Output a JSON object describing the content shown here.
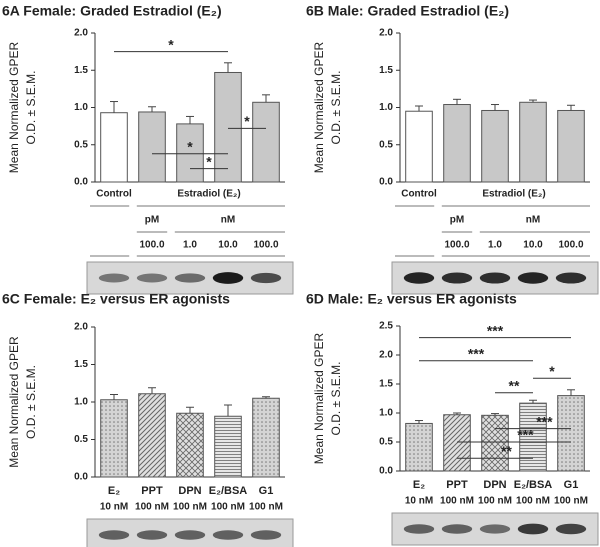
{
  "chart_data": [
    {
      "type": "bar",
      "title": "6A  Female:  Graded Estradiol (E₂)",
      "ylabel": [
        "Mean Normalized GPER",
        "O.D. ± S.E.M."
      ],
      "control_label": "Control",
      "group_label": "Estradiol (E₂)",
      "units": [
        "pM",
        "nM"
      ],
      "categories": [
        null,
        "100.0",
        "1.0",
        "10.0",
        "100.0"
      ],
      "values": [
        0.93,
        0.94,
        0.78,
        1.47,
        1.07
      ],
      "errors": [
        0.15,
        0.07,
        0.1,
        0.13,
        0.1
      ],
      "colors": [
        "#ffffff",
        "#c8c8c8",
        "#c8c8c8",
        "#c8c8c8",
        "#c8c8c8"
      ],
      "ylim": [
        0,
        2
      ],
      "yticks": [
        {
          "value": 0,
          "label": "0.0"
        },
        {
          "value": 0.5,
          "label": "0.5"
        },
        {
          "value": 1,
          "label": "1.0"
        },
        {
          "value": 1.5,
          "label": "1.5"
        },
        {
          "value": 2,
          "label": "2.0"
        }
      ],
      "annotations": [
        "*",
        "*",
        "*",
        "*"
      ]
    },
    {
      "type": "bar",
      "title": "6B  Male:  Graded Estradiol (E₂)",
      "ylabel": [
        "Mean Normalized GPER",
        "O.D. ± S.E.M."
      ],
      "control_label": "Control",
      "group_label": "Estradiol (E₂)",
      "units": [
        "pM",
        "nM"
      ],
      "categories": [
        null,
        "100.0",
        "1.0",
        "10.0",
        "100.0"
      ],
      "values": [
        0.95,
        1.04,
        0.96,
        1.07,
        0.96
      ],
      "errors": [
        0.07,
        0.07,
        0.08,
        0.03,
        0.07
      ],
      "colors": [
        "#ffffff",
        "#c8c8c8",
        "#c8c8c8",
        "#c8c8c8",
        "#c8c8c8"
      ],
      "ylim": [
        0,
        2
      ],
      "yticks": [
        {
          "value": 0,
          "label": "0.0"
        },
        {
          "value": 0.5,
          "label": "0.5"
        },
        {
          "value": 1,
          "label": "1.0"
        },
        {
          "value": 1.5,
          "label": "1.5"
        },
        {
          "value": 2,
          "label": "2.0"
        }
      ],
      "annotations": []
    },
    {
      "type": "bar",
      "title": "6C   Female:  E₂ versus ER agonists",
      "ylabel": [
        "Mean Normalized GPER",
        "O.D. ± S.E.M."
      ],
      "categories": [
        "E₂",
        "PPT",
        "DPN",
        "E₂/BSA",
        "G1"
      ],
      "doses": [
        "10 nM",
        "100 nM",
        "100 nM",
        "100 nM",
        "100 nM"
      ],
      "values": [
        1.03,
        1.11,
        0.85,
        0.81,
        1.05
      ],
      "errors": [
        0.07,
        0.08,
        0.08,
        0.15,
        0.02
      ],
      "colors": [
        "#d4d4d4",
        "#d4d4d4",
        "#d4d4d4",
        "#d4d4d4",
        "#d4d4d4"
      ],
      "hatch": [
        "dots",
        "diagonal",
        "crosshatch",
        "horizontal",
        "dots"
      ],
      "ylim": [
        0,
        2
      ],
      "yticks": [
        {
          "value": 0,
          "label": "0.0"
        },
        {
          "value": 0.5,
          "label": "0.5"
        },
        {
          "value": 1,
          "label": "1.0"
        },
        {
          "value": 1.5,
          "label": "1.5"
        },
        {
          "value": 2,
          "label": "2.0"
        }
      ],
      "annotations": []
    },
    {
      "type": "bar",
      "title": "6D   Male:  E₂ versus ER agonists",
      "ylabel": [
        "Mean Normalized GPER",
        "O.D. ± S.E.M."
      ],
      "categories": [
        "E₂",
        "PPT",
        "DPN",
        "E₂/BSA",
        "G1"
      ],
      "doses": [
        "10 nM",
        "100 nM",
        "100 nM",
        "100 nM",
        "100 nM"
      ],
      "values": [
        0.82,
        0.97,
        0.96,
        1.17,
        1.3
      ],
      "errors": [
        0.05,
        0.03,
        0.03,
        0.05,
        0.1
      ],
      "colors": [
        "#d4d4d4",
        "#d4d4d4",
        "#d4d4d4",
        "#d4d4d4",
        "#d4d4d4"
      ],
      "hatch": [
        "dots",
        "diagonal",
        "crosshatch",
        "horizontal",
        "dots"
      ],
      "ylim": [
        0,
        2.5
      ],
      "yticks": [
        {
          "value": 0,
          "label": "0.0"
        },
        {
          "value": 0.5,
          "label": "0.5"
        },
        {
          "value": 1,
          "label": "1.0"
        },
        {
          "value": 1.5,
          "label": "1.5"
        },
        {
          "value": 2,
          "label": "2.0"
        },
        {
          "value": 2.5,
          "label": "2.5"
        }
      ],
      "annotations": [
        "***",
        "***",
        "**",
        "*",
        "***",
        "***",
        "**"
      ]
    }
  ]
}
